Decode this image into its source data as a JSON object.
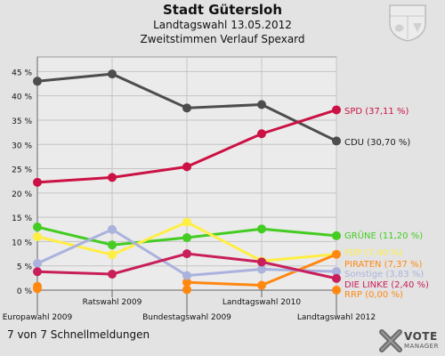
{
  "header": {
    "title": "Stadt Gütersloh",
    "subtitle": "Landtagswahl 13.05.2012",
    "subtitle2": "Zweitstimmen Verlauf Spexard"
  },
  "footer_note": "7 von 7 Schnellmeldungen",
  "brand": {
    "top": "VOTE",
    "bottom": "MANAGER",
    "icon": "x-logo-icon"
  },
  "crest": {
    "icon": "coat-of-arms-icon"
  },
  "chart_data": {
    "type": "line",
    "title": "",
    "xlabel": "",
    "ylabel": "",
    "categories": [
      "Europawahl 2009",
      "Ratswahl 2009",
      "Bundestagswahl 2009",
      "Landtagswahl 2010",
      "Landtagswahl 2012"
    ],
    "ylim": [
      0,
      48
    ],
    "yticks": [
      0,
      5,
      10,
      15,
      20,
      25,
      30,
      35,
      40,
      45
    ],
    "ytick_labels": [
      "0 %",
      "5 %",
      "10 %",
      "15 %",
      "20 %",
      "25 %",
      "30 %",
      "35 %",
      "40 %",
      "45 %"
    ],
    "grid": true,
    "series": [
      {
        "name": "CDU",
        "label": "CDU (30,70 %)",
        "color": "#4d4d4d",
        "values": [
          43.0,
          44.5,
          37.5,
          38.2,
          30.7
        ]
      },
      {
        "name": "SPD",
        "label": "SPD (37,11 %)",
        "color": "#cc1144",
        "values": [
          22.2,
          23.2,
          25.4,
          32.2,
          37.11
        ]
      },
      {
        "name": "GRÜNE",
        "label": "GRÜNE (11,20 %)",
        "color": "#44cc22",
        "values": [
          13.0,
          9.3,
          10.8,
          12.6,
          11.2
        ]
      },
      {
        "name": "FDP",
        "label": "FDP (7,40 %)",
        "color": "#ffee44",
        "values": [
          11.0,
          7.3,
          14.0,
          6.0,
          7.4
        ]
      },
      {
        "name": "PIRATEN",
        "label": "PIRATEN (7,37 %)",
        "color": "#ff8811",
        "values": [
          0.8,
          null,
          1.6,
          1.0,
          7.37
        ]
      },
      {
        "name": "Sonstige",
        "label": "Sonstige (3,83 %)",
        "color": "#aab2dd",
        "values": [
          5.5,
          12.5,
          3.0,
          4.3,
          3.83
        ]
      },
      {
        "name": "DIE LINKE",
        "label": "DIE LINKE (2,40 %)",
        "color": "#c81e5a",
        "values": [
          3.8,
          3.3,
          7.5,
          5.8,
          2.4
        ]
      },
      {
        "name": "RRP",
        "label": "RRP (0,00 %)",
        "color": "#ff8811",
        "values": [
          0.3,
          null,
          0.1,
          null,
          0.0
        ]
      }
    ]
  }
}
